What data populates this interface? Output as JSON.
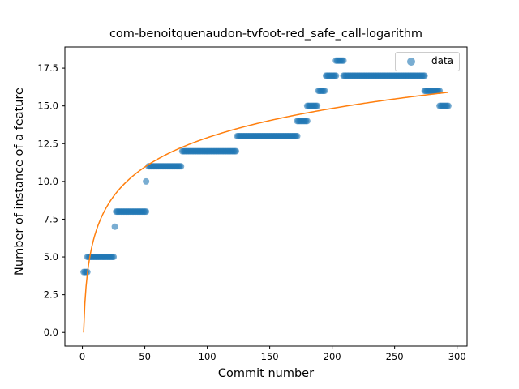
{
  "chart_data": {
    "type": "scatter",
    "title": "com-benoitquenaudon-tvfoot-red_safe_call-logarithm",
    "xlabel": "Commit number",
    "ylabel": "Number of instance of a feature",
    "xlim": [
      -14,
      308
    ],
    "ylim": [
      -0.9,
      18.9
    ],
    "xticks": [
      0,
      50,
      100,
      150,
      200,
      250,
      300
    ],
    "yticks": [
      0.0,
      2.5,
      5.0,
      7.5,
      10.0,
      12.5,
      15.0,
      17.5
    ],
    "ytick_labels": [
      "0.0",
      "2.5",
      "5.0",
      "7.5",
      "10.0",
      "12.5",
      "15.0",
      "17.5"
    ],
    "grid": false,
    "legend": {
      "position": "top-right",
      "entries": [
        "data"
      ]
    },
    "colors": {
      "data": "#1f77b4",
      "fit": "#ff7f0e"
    },
    "series": [
      {
        "name": "data",
        "kind": "scatter",
        "segments": [
          {
            "x_start": 1,
            "x_end": 4,
            "y": 4
          },
          {
            "x_start": 4,
            "x_end": 25,
            "y": 5
          },
          {
            "x_start": 26,
            "x_end": 26,
            "y": 7
          },
          {
            "x_start": 27,
            "x_end": 51,
            "y": 8
          },
          {
            "x_start": 51,
            "x_end": 51,
            "y": 10
          },
          {
            "x_start": 53,
            "x_end": 79,
            "y": 11
          },
          {
            "x_start": 80,
            "x_end": 123,
            "y": 12
          },
          {
            "x_start": 124,
            "x_end": 172,
            "y": 13
          },
          {
            "x_start": 172,
            "x_end": 180,
            "y": 14
          },
          {
            "x_start": 180,
            "x_end": 188,
            "y": 15
          },
          {
            "x_start": 189,
            "x_end": 194,
            "y": 16
          },
          {
            "x_start": 195,
            "x_end": 203,
            "y": 17
          },
          {
            "x_start": 203,
            "x_end": 209,
            "y": 18
          },
          {
            "x_start": 209,
            "x_end": 274,
            "y": 17
          },
          {
            "x_start": 274,
            "x_end": 286,
            "y": 16
          },
          {
            "x_start": 286,
            "x_end": 293,
            "y": 15
          }
        ]
      },
      {
        "name": "",
        "kind": "line",
        "x_range": [
          1,
          293
        ],
        "model": "log",
        "a": 0.0,
        "b": 2.8
      }
    ]
  }
}
